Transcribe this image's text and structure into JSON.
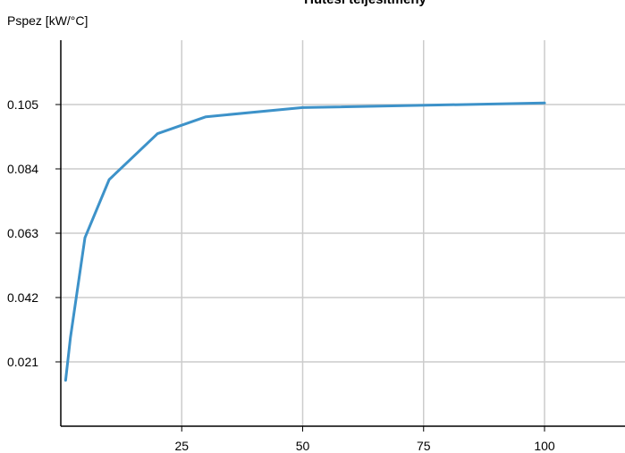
{
  "chart_data": {
    "type": "line",
    "title": "Hűtési teljesítmény",
    "ylabel": "Pspez [kW/°C]",
    "xlabel": "",
    "x_ticks": [
      "25",
      "50",
      "75",
      "100"
    ],
    "y_ticks": [
      "0.021",
      "0.042",
      "0.063",
      "0.084",
      "0.105"
    ],
    "xlim": [
      0,
      115
    ],
    "ylim": [
      0,
      0.126
    ],
    "grid": true,
    "series": [
      {
        "x": [
          1,
          2,
          5,
          10,
          20,
          30,
          50,
          100
        ],
        "y": [
          0.015,
          0.029,
          0.0615,
          0.0805,
          0.0955,
          0.101,
          0.104,
          0.1055
        ],
        "color": "#3d92c9"
      }
    ]
  }
}
